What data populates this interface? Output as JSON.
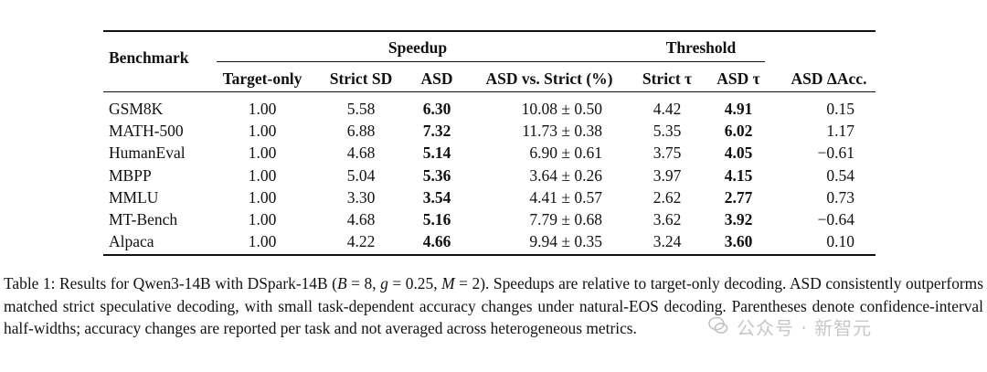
{
  "table": {
    "header": {
      "benchmark": "Benchmark",
      "group_speedup": "Speedup",
      "group_threshold": "Threshold",
      "target_only": "Target-only",
      "strict_sd": "Strict SD",
      "asd": "ASD",
      "asd_vs_strict": "ASD vs. Strict (%)",
      "strict_tau": "Strict τ",
      "asd_tau": "ASD τ",
      "asd_delta_acc": "ASD ΔAcc."
    },
    "rows": [
      {
        "benchmark": "GSM8K",
        "target_only": "1.00",
        "strict_sd": "5.58",
        "asd": "6.30",
        "asd_vs_strict": "10.08 ± 0.50",
        "strict_tau": "4.42",
        "asd_tau": "4.91",
        "asd_delta_acc": "0.15"
      },
      {
        "benchmark": "MATH-500",
        "target_only": "1.00",
        "strict_sd": "6.88",
        "asd": "7.32",
        "asd_vs_strict": "11.73 ± 0.38",
        "strict_tau": "5.35",
        "asd_tau": "6.02",
        "asd_delta_acc": "1.17"
      },
      {
        "benchmark": "HumanEval",
        "target_only": "1.00",
        "strict_sd": "4.68",
        "asd": "5.14",
        "asd_vs_strict": "6.90 ± 0.61",
        "strict_tau": "3.75",
        "asd_tau": "4.05",
        "asd_delta_acc": "−0.61"
      },
      {
        "benchmark": "MBPP",
        "target_only": "1.00",
        "strict_sd": "5.04",
        "asd": "5.36",
        "asd_vs_strict": "3.64 ± 0.26",
        "strict_tau": "3.97",
        "asd_tau": "4.15",
        "asd_delta_acc": "0.54"
      },
      {
        "benchmark": "MMLU",
        "target_only": "1.00",
        "strict_sd": "3.30",
        "asd": "3.54",
        "asd_vs_strict": "4.41 ± 0.57",
        "strict_tau": "2.62",
        "asd_tau": "2.77",
        "asd_delta_acc": "0.73"
      },
      {
        "benchmark": "MT-Bench",
        "target_only": "1.00",
        "strict_sd": "4.68",
        "asd": "5.16",
        "asd_vs_strict": "7.79 ± 0.68",
        "strict_tau": "3.62",
        "asd_tau": "3.92",
        "asd_delta_acc": "−0.64"
      },
      {
        "benchmark": "Alpaca",
        "target_only": "1.00",
        "strict_sd": "4.22",
        "asd": "4.66",
        "asd_vs_strict": "9.94 ± 0.35",
        "strict_tau": "3.24",
        "asd_tau": "3.60",
        "asd_delta_acc": "0.10"
      }
    ]
  },
  "caption": {
    "line1_a": "Table 1: Results for Qwen3-14B with DSpark-14B (",
    "param_b": "B",
    "eq_b": " = 8, ",
    "param_g": "g",
    "eq_g": " = 0.25, ",
    "param_m": "M",
    "eq_m": " = 2). Speedups are relative to target-only decoding.",
    "rest": "ASD consistently outperforms matched strict speculative decoding, with small task-dependent accuracy changes under natural-EOS decoding. Parentheses denote confidence-interval half-widths; accuracy changes are reported per task and not averaged across heterogeneous metrics."
  },
  "watermark": {
    "text": "公众号 · 新智元",
    "icon": "wechat-logo-icon"
  }
}
